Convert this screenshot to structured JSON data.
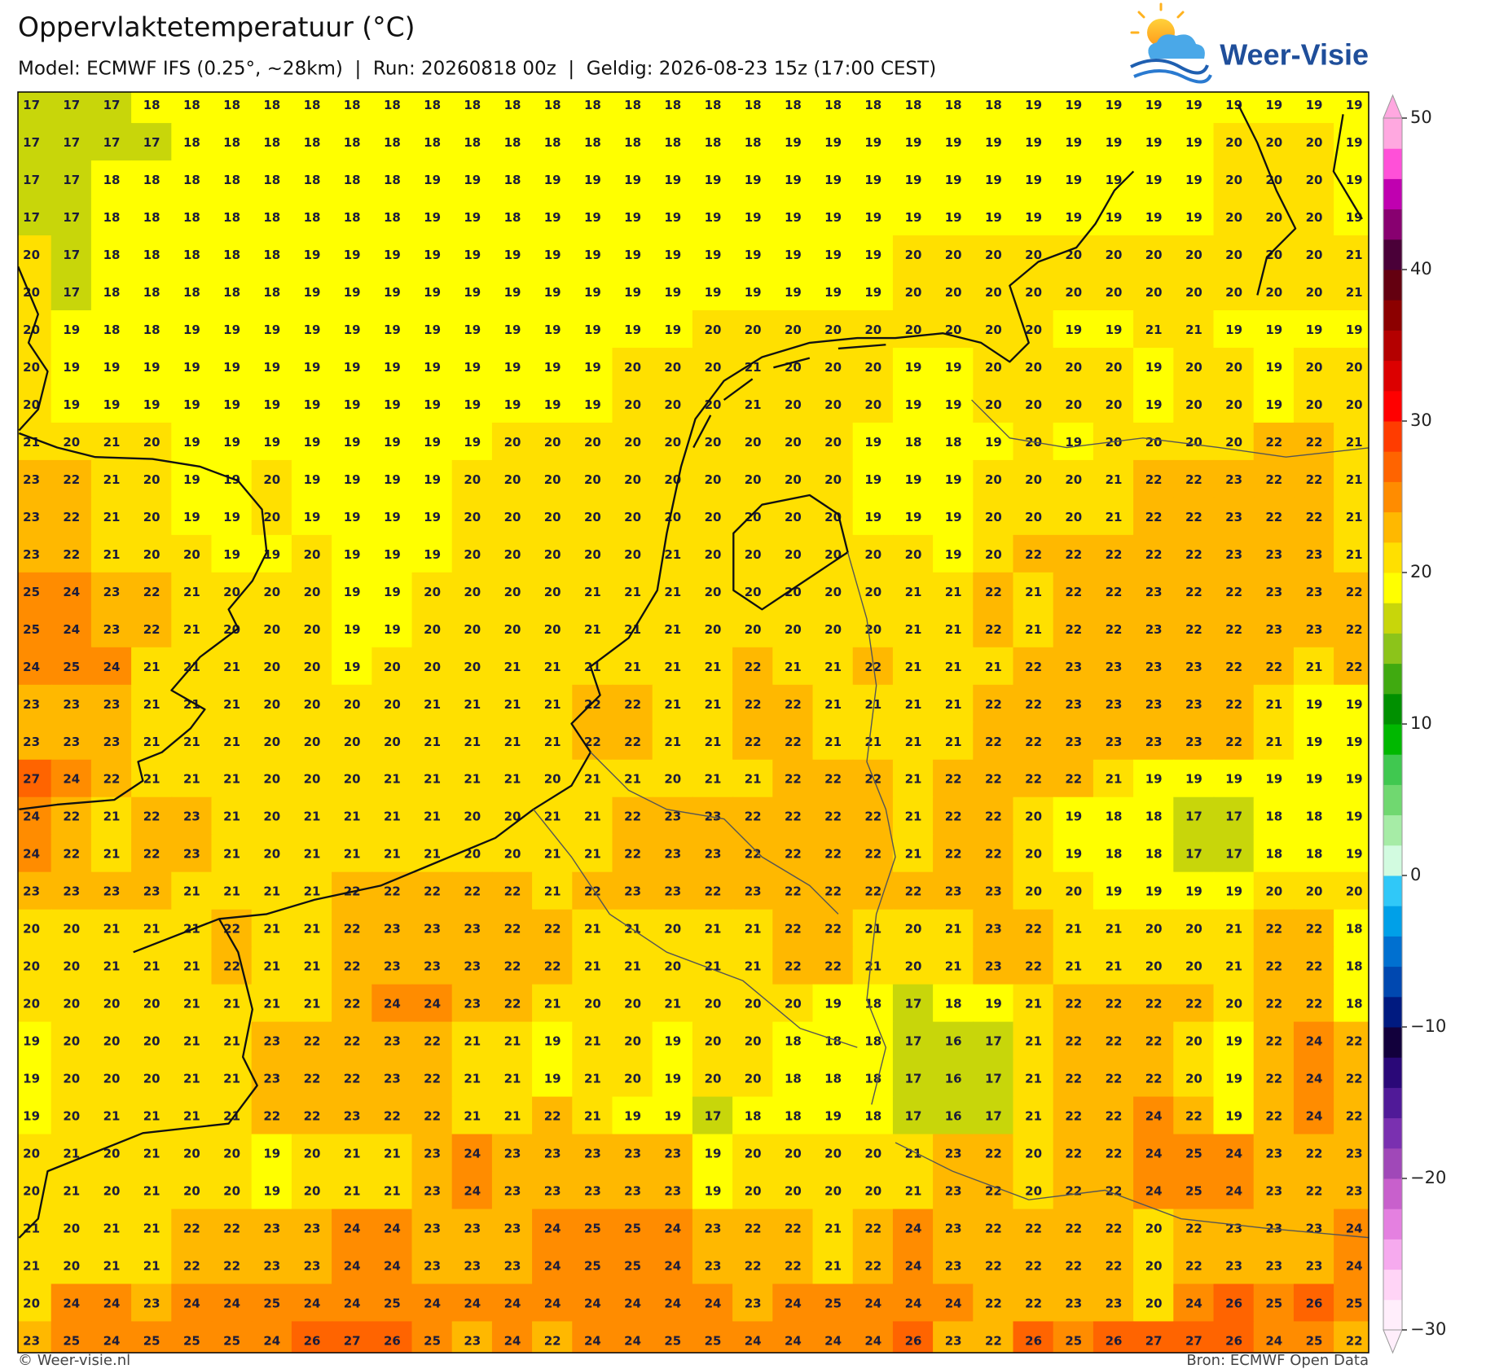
{
  "header": {
    "title": "Oppervlaktetemperatuur (°C)",
    "subtitle": "Model: ECMWF IFS (0.25°, ~28km)  |  Run: 20260818 00z  |  Geldig: 2026-08-23 15z (17:00 CEST)",
    "logo": "Weer-Visie"
  },
  "grid": {
    "rows": [
      [
        17,
        17,
        17,
        18,
        18,
        18,
        18,
        18,
        18,
        18,
        18,
        18,
        18,
        18,
        18,
        18,
        18,
        18,
        18,
        18,
        18,
        18,
        18,
        18,
        18,
        19,
        19,
        19,
        19,
        19,
        19,
        19,
        19,
        19
      ],
      [
        17,
        17,
        17,
        17,
        18,
        18,
        18,
        18,
        18,
        18,
        18,
        18,
        18,
        18,
        18,
        18,
        18,
        18,
        18,
        19,
        19,
        19,
        19,
        19,
        19,
        19,
        19,
        19,
        19,
        19,
        20,
        20,
        20,
        19
      ],
      [
        17,
        17,
        18,
        18,
        18,
        18,
        18,
        18,
        18,
        18,
        19,
        19,
        18,
        19,
        19,
        19,
        19,
        19,
        19,
        19,
        19,
        19,
        19,
        19,
        19,
        19,
        19,
        19,
        19,
        19,
        20,
        20,
        20,
        19
      ],
      [
        17,
        17,
        18,
        18,
        18,
        18,
        18,
        18,
        18,
        18,
        19,
        19,
        18,
        19,
        19,
        19,
        19,
        19,
        19,
        19,
        19,
        19,
        19,
        19,
        19,
        19,
        19,
        19,
        19,
        19,
        20,
        20,
        20,
        19
      ],
      [
        20,
        17,
        18,
        18,
        18,
        18,
        18,
        19,
        19,
        19,
        19,
        19,
        19,
        19,
        19,
        19,
        19,
        19,
        19,
        19,
        19,
        19,
        20,
        20,
        20,
        20,
        20,
        20,
        20,
        20,
        20,
        20,
        20,
        21
      ],
      [
        20,
        17,
        18,
        18,
        18,
        18,
        18,
        19,
        19,
        19,
        19,
        19,
        19,
        19,
        19,
        19,
        19,
        19,
        19,
        19,
        19,
        19,
        20,
        20,
        20,
        20,
        20,
        20,
        20,
        20,
        20,
        20,
        20,
        21
      ],
      [
        20,
        19,
        18,
        18,
        19,
        19,
        19,
        19,
        19,
        19,
        19,
        19,
        19,
        19,
        19,
        19,
        19,
        20,
        20,
        20,
        20,
        20,
        20,
        20,
        20,
        20,
        19,
        19,
        21,
        21,
        19,
        19,
        19,
        19
      ],
      [
        20,
        19,
        19,
        19,
        19,
        19,
        19,
        19,
        19,
        19,
        19,
        19,
        19,
        19,
        19,
        20,
        20,
        20,
        21,
        20,
        20,
        20,
        19,
        19,
        20,
        20,
        20,
        20,
        19,
        20,
        20,
        19,
        20,
        20
      ],
      [
        20,
        19,
        19,
        19,
        19,
        19,
        19,
        19,
        19,
        19,
        19,
        19,
        19,
        19,
        19,
        20,
        20,
        20,
        21,
        20,
        20,
        20,
        19,
        19,
        20,
        20,
        20,
        20,
        19,
        20,
        20,
        19,
        20,
        20
      ],
      [
        21,
        20,
        21,
        20,
        19,
        19,
        19,
        19,
        19,
        19,
        19,
        19,
        20,
        20,
        20,
        20,
        20,
        20,
        20,
        20,
        20,
        19,
        18,
        18,
        19,
        20,
        19,
        20,
        20,
        20,
        20,
        22,
        22,
        21
      ],
      [
        23,
        22,
        21,
        20,
        19,
        19,
        20,
        19,
        19,
        19,
        19,
        20,
        20,
        20,
        20,
        20,
        20,
        20,
        20,
        20,
        20,
        19,
        19,
        19,
        20,
        20,
        20,
        21,
        22,
        22,
        23,
        22,
        22,
        21
      ],
      [
        23,
        22,
        21,
        20,
        19,
        19,
        20,
        19,
        19,
        19,
        19,
        20,
        20,
        20,
        20,
        20,
        20,
        20,
        20,
        20,
        20,
        19,
        19,
        19,
        20,
        20,
        20,
        21,
        22,
        22,
        23,
        22,
        22,
        21
      ],
      [
        23,
        22,
        21,
        20,
        20,
        19,
        19,
        20,
        19,
        19,
        19,
        20,
        20,
        20,
        20,
        20,
        21,
        20,
        20,
        20,
        20,
        20,
        20,
        19,
        20,
        22,
        22,
        22,
        22,
        22,
        23,
        23,
        23,
        21
      ],
      [
        25,
        24,
        23,
        22,
        21,
        20,
        20,
        20,
        19,
        19,
        20,
        20,
        20,
        20,
        21,
        21,
        21,
        20,
        20,
        20,
        20,
        20,
        21,
        21,
        22,
        21,
        22,
        22,
        23,
        22,
        22,
        23,
        23,
        22
      ],
      [
        25,
        24,
        23,
        22,
        21,
        20,
        20,
        20,
        19,
        19,
        20,
        20,
        20,
        20,
        21,
        21,
        21,
        20,
        20,
        20,
        20,
        20,
        21,
        21,
        22,
        21,
        22,
        22,
        23,
        22,
        22,
        23,
        23,
        22
      ],
      [
        24,
        25,
        24,
        21,
        21,
        21,
        20,
        20,
        19,
        20,
        20,
        20,
        21,
        21,
        21,
        21,
        21,
        21,
        22,
        21,
        21,
        22,
        21,
        21,
        21,
        22,
        23,
        23,
        23,
        23,
        22,
        22,
        21,
        22
      ],
      [
        23,
        23,
        23,
        21,
        21,
        21,
        20,
        20,
        20,
        20,
        21,
        21,
        21,
        21,
        22,
        22,
        21,
        21,
        22,
        22,
        21,
        21,
        21,
        21,
        22,
        22,
        23,
        23,
        23,
        23,
        22,
        21,
        19,
        19
      ],
      [
        23,
        23,
        23,
        21,
        21,
        21,
        20,
        20,
        20,
        20,
        21,
        21,
        21,
        21,
        22,
        22,
        21,
        21,
        22,
        22,
        21,
        21,
        21,
        21,
        22,
        22,
        23,
        23,
        23,
        23,
        22,
        21,
        19,
        19
      ],
      [
        27,
        24,
        22,
        21,
        21,
        21,
        20,
        20,
        20,
        21,
        21,
        21,
        21,
        20,
        21,
        21,
        20,
        21,
        21,
        22,
        22,
        22,
        21,
        22,
        22,
        22,
        22,
        21,
        19,
        19,
        19,
        19,
        19,
        19
      ],
      [
        24,
        22,
        21,
        22,
        23,
        21,
        20,
        21,
        21,
        21,
        21,
        20,
        20,
        21,
        21,
        22,
        23,
        23,
        22,
        22,
        22,
        22,
        21,
        22,
        22,
        20,
        19,
        18,
        18,
        17,
        17,
        18,
        18,
        19
      ],
      [
        24,
        22,
        21,
        22,
        23,
        21,
        20,
        21,
        21,
        21,
        21,
        20,
        20,
        21,
        21,
        22,
        23,
        23,
        22,
        22,
        22,
        22,
        21,
        22,
        22,
        20,
        19,
        18,
        18,
        17,
        17,
        18,
        18,
        19
      ],
      [
        23,
        23,
        23,
        23,
        21,
        21,
        21,
        21,
        22,
        22,
        22,
        22,
        22,
        21,
        22,
        23,
        23,
        22,
        23,
        22,
        22,
        22,
        22,
        23,
        23,
        20,
        20,
        19,
        19,
        19,
        19,
        20,
        20,
        20
      ],
      [
        20,
        20,
        21,
        21,
        21,
        22,
        21,
        21,
        22,
        23,
        23,
        23,
        22,
        22,
        21,
        21,
        20,
        21,
        21,
        22,
        22,
        21,
        20,
        21,
        23,
        22,
        21,
        21,
        20,
        20,
        21,
        22,
        22,
        18
      ],
      [
        20,
        20,
        21,
        21,
        21,
        22,
        21,
        21,
        22,
        23,
        23,
        23,
        22,
        22,
        21,
        21,
        20,
        21,
        21,
        22,
        22,
        21,
        20,
        21,
        23,
        22,
        21,
        21,
        20,
        20,
        21,
        22,
        22,
        18
      ],
      [
        20,
        20,
        20,
        20,
        21,
        21,
        21,
        21,
        22,
        24,
        24,
        23,
        22,
        21,
        20,
        20,
        21,
        20,
        20,
        20,
        19,
        18,
        17,
        18,
        19,
        21,
        22,
        22,
        22,
        22,
        20,
        22,
        22,
        18
      ],
      [
        19,
        20,
        20,
        20,
        21,
        21,
        23,
        22,
        22,
        23,
        22,
        21,
        21,
        19,
        21,
        20,
        19,
        20,
        20,
        18,
        18,
        18,
        17,
        16,
        17,
        21,
        22,
        22,
        22,
        20,
        19,
        22,
        24,
        22
      ],
      [
        19,
        20,
        20,
        20,
        21,
        21,
        23,
        22,
        22,
        23,
        22,
        21,
        21,
        19,
        21,
        20,
        19,
        20,
        20,
        18,
        18,
        18,
        17,
        16,
        17,
        21,
        22,
        22,
        22,
        20,
        19,
        22,
        24,
        22
      ],
      [
        19,
        20,
        21,
        21,
        21,
        21,
        22,
        22,
        23,
        22,
        22,
        21,
        21,
        22,
        21,
        19,
        19,
        17,
        18,
        18,
        19,
        18,
        17,
        16,
        17,
        21,
        22,
        22,
        24,
        22,
        19,
        22,
        24,
        22
      ],
      [
        20,
        21,
        20,
        21,
        20,
        20,
        19,
        20,
        21,
        21,
        23,
        24,
        23,
        23,
        23,
        23,
        23,
        19,
        20,
        20,
        20,
        20,
        21,
        23,
        22,
        20,
        22,
        22,
        24,
        25,
        24,
        23,
        22,
        23
      ],
      [
        20,
        21,
        20,
        21,
        20,
        20,
        19,
        20,
        21,
        21,
        23,
        24,
        23,
        23,
        23,
        23,
        23,
        19,
        20,
        20,
        20,
        20,
        21,
        23,
        22,
        20,
        22,
        22,
        24,
        25,
        24,
        23,
        22,
        23
      ],
      [
        21,
        20,
        21,
        21,
        22,
        22,
        23,
        23,
        24,
        24,
        23,
        23,
        23,
        24,
        25,
        25,
        24,
        23,
        22,
        22,
        21,
        22,
        24,
        23,
        22,
        22,
        22,
        22,
        20,
        22,
        23,
        23,
        23,
        24
      ],
      [
        21,
        20,
        21,
        21,
        22,
        22,
        23,
        23,
        24,
        24,
        23,
        23,
        23,
        24,
        25,
        25,
        24,
        23,
        22,
        22,
        21,
        22,
        24,
        23,
        22,
        22,
        22,
        22,
        20,
        22,
        23,
        23,
        23,
        24
      ],
      [
        20,
        24,
        24,
        23,
        24,
        24,
        25,
        24,
        24,
        25,
        24,
        24,
        24,
        24,
        24,
        24,
        24,
        24,
        23,
        24,
        25,
        24,
        24,
        24,
        22,
        22,
        23,
        23,
        20,
        24,
        26,
        25,
        26,
        25
      ],
      [
        23,
        25,
        24,
        25,
        25,
        25,
        24,
        26,
        27,
        26,
        25,
        23,
        24,
        22,
        24,
        24,
        25,
        25,
        24,
        24,
        24,
        24,
        26,
        23,
        22,
        26,
        25,
        26,
        27,
        27,
        26,
        24,
        25,
        22
      ]
    ]
  },
  "colorbar": {
    "lim": [
      -30,
      50
    ],
    "ticks": [
      50,
      40,
      30,
      20,
      10,
      0,
      {
        "value": -10,
        "label": "−10"
      },
      {
        "value": -20,
        "label": "−20"
      },
      {
        "value": -30,
        "label": "−30"
      }
    ],
    "colors": [
      "#ffeefb",
      "#ffd4f6",
      "#f6aaee",
      "#e480e0",
      "#c860cc",
      "#a048b8",
      "#7a30b0",
      "#501a98",
      "#2a0878",
      "#12003c",
      "#001a80",
      "#0048b0",
      "#0070d0",
      "#00a0e8",
      "#30c8f8",
      "#d2fbe0",
      "#a6eca6",
      "#70d870",
      "#40c850",
      "#00b800",
      "#009000",
      "#40aa10",
      "#8cc41a",
      "#c8d60a",
      "#ffff00",
      "#ffe000",
      "#ffb800",
      "#ff8c00",
      "#ff6400",
      "#ff3c00",
      "#ff0000",
      "#dc0000",
      "#b40000",
      "#8c0000",
      "#640010",
      "#4a0038",
      "#880070",
      "#c000b0",
      "#ff50d8",
      "#ffa8e0"
    ]
  },
  "footer": {
    "left": "© Weer-visie.nl",
    "right": "Bron: ECMWF Open Data"
  }
}
